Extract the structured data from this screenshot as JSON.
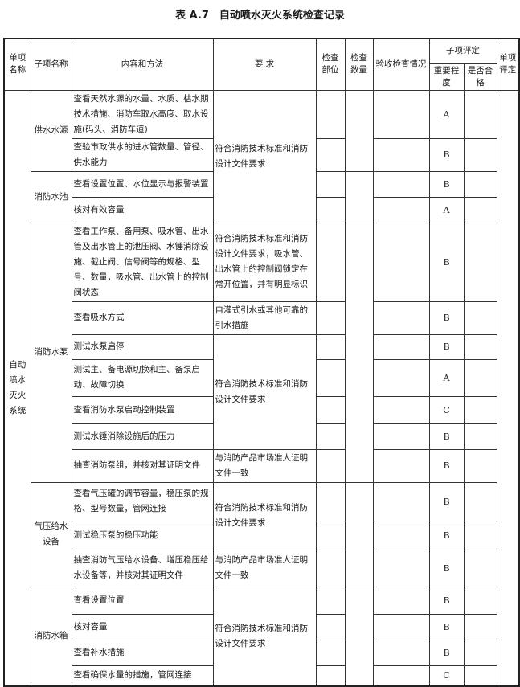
{
  "title": "表 A.7　自动喷水灭火系统检查记录",
  "headers": {
    "unit_name": "单项名称",
    "sub_name": "子项名称",
    "content": "内容和方法",
    "requirement": "要 求",
    "check_location": "检查部位",
    "check_count": "检查数量",
    "acceptance": "验收检查情况",
    "sub_eval": "子项评定",
    "importance": "重要程度",
    "qualified": "是否合格",
    "unit_eval": "单项评定"
  },
  "unit": "自动喷水灭火系统",
  "groups": [
    {
      "name": "供水水源",
      "rows": [
        {
          "content": "查看天然水源的水量、水质、枯水期技术措施、消防车取水高度、取水设施(码头、消防车道)",
          "grade": "A"
        },
        {
          "content": "查验市政供水的进水管数量、管径、供水能力",
          "grade": "B"
        }
      ]
    },
    {
      "name": "消防水池",
      "rows": [
        {
          "content": "查看设置位置、水位显示与报警装置",
          "grade": "B"
        },
        {
          "content": "核对有效容量",
          "grade": "A"
        }
      ]
    },
    {
      "name": "消防水泵",
      "rows": [
        {
          "content": "查看工作泵、备用泵、吸水管、出水管及出水管上的泄压阀、水锤消除设施、截止阀、信号阀等的规格、型号、数量，吸水管、出水管上的控制阀状态",
          "grade": "B"
        },
        {
          "content": "查看吸水方式",
          "grade": "B"
        },
        {
          "content": "测试水泵启停",
          "grade": "B"
        },
        {
          "content": "测试主、备电源切换和主、备泵启动、故障切换",
          "grade": "A"
        },
        {
          "content": "查看消防水泵启动控制装置",
          "grade": "C"
        },
        {
          "content": "测试水锤消除设施后的压力",
          "grade": "B"
        },
        {
          "content": "抽查消防泵组，并核对其证明文件",
          "grade": "B"
        }
      ]
    },
    {
      "name": "气压给水设备",
      "rows": [
        {
          "content": "查看气压罐的调节容量，稳压泵的规格、型号数量，管网连接",
          "grade": "B"
        },
        {
          "content": "测试稳压泵的稳压功能",
          "grade": "B"
        },
        {
          "content": "抽查消防气压给水设备、增压稳压给水设备等，并核对其证明文件",
          "grade": "B"
        }
      ]
    },
    {
      "name": "消防水箱",
      "rows": [
        {
          "content": "查看设置位置",
          "grade": "B"
        },
        {
          "content": "核对容量",
          "grade": "B"
        },
        {
          "content": "查看补水措施",
          "grade": "B"
        },
        {
          "content": "查看确保水量的措施，管网连接",
          "grade": "C"
        }
      ]
    }
  ],
  "requirements": {
    "standard": "符合消防技术标准和消防设计文件要求",
    "pump_valves": "符合消防技术标准和消防设计文件要求，吸水管、出水管上的控制阀锁定在常开位置，并有明显标识",
    "suction": "自灌式引水或其他可靠的引水措施",
    "certificate": "与消防产品市场准人证明文件一致"
  }
}
